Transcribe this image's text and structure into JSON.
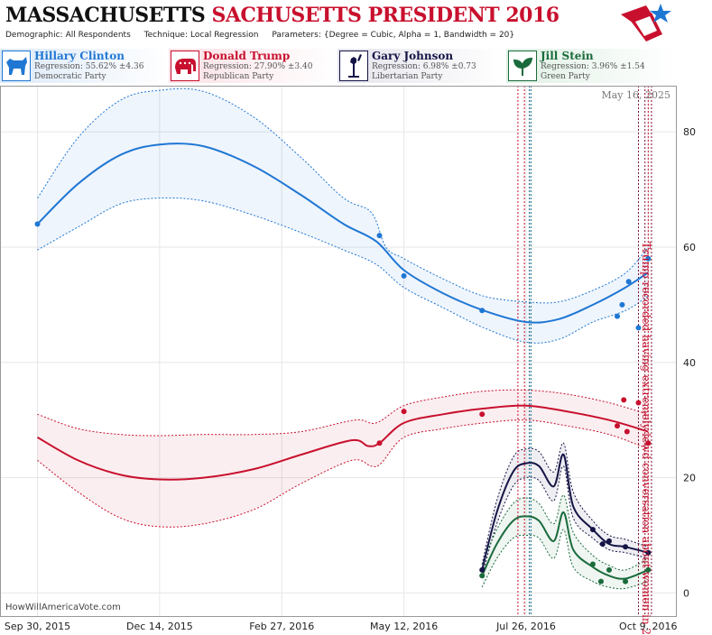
{
  "header": {
    "title_state": "MASSACHUSETTS",
    "title_state_repeat": "SACHUSETTS",
    "title_race": "PRESIDENT 2016",
    "demographic_label": "Demographic:",
    "demographic_value": "All Respondents",
    "technique_label": "Technique:",
    "technique_value": "Local Regression",
    "parameters_label": "Parameters:",
    "parameters_value": "{Degree = Cubic, Alpha = 1, Bandwidth = 20}"
  },
  "candidates": [
    {
      "name": "Hillary Clinton",
      "regression": "Regression: 55.62% ±4.36",
      "party": "Democratic Party",
      "color": "#1f77d4",
      "icon": "donkey-icon"
    },
    {
      "name": "Donald Trump",
      "regression": "Regression: 27.90% ±3.40",
      "party": "Republican Party",
      "color": "#c8102e",
      "icon": "elephant-icon"
    },
    {
      "name": "Gary Johnson",
      "regression": "Regression: 6.98% ±0.73",
      "party": "Libertarian Party",
      "color": "#141446",
      "icon": "liberty-icon"
    },
    {
      "name": "Jill Stein",
      "regression": "Regression: 3.96% ±1.54",
      "party": "Green Party",
      "color": "#1a6b3c",
      "icon": "leaf-icon"
    }
  ],
  "date_stamp": "May 16, 2025",
  "watermark": "HowWillAmericaVote.com",
  "annotation": "Trump recorded having extremely lewd conversation about women in 2005",
  "chart_data": {
    "type": "line",
    "x_ticks": [
      "Sep 30, 2015",
      "Dec 14, 2015",
      "Feb 27, 2016",
      "May 12, 2016",
      "Jul 26, 2016",
      "Oct 9, 2016"
    ],
    "y_ticks": [
      0,
      20,
      40,
      60,
      80
    ],
    "ylim": [
      -4,
      88
    ],
    "xlim": [
      "2015-09-07",
      "2016-10-26"
    ],
    "grid": true,
    "event_lines": [
      "2016-07-21",
      "2016-07-28",
      "2016-07-25",
      "2016-07-29",
      "2016-10-03",
      "2016-10-07",
      "2016-10-09",
      "2016-10-11"
    ],
    "series": [
      {
        "name": "Hillary Clinton",
        "color": "#1f77d4",
        "line": [
          [
            "2015-09-30",
            64
          ],
          [
            "2015-10-25",
            71
          ],
          [
            "2015-11-20",
            76
          ],
          [
            "2015-12-14",
            77.8
          ],
          [
            "2016-01-10",
            77.5
          ],
          [
            "2016-02-10",
            74
          ],
          [
            "2016-03-10",
            69
          ],
          [
            "2016-04-05",
            64
          ],
          [
            "2016-04-25",
            61
          ],
          [
            "2016-05-12",
            56
          ],
          [
            "2016-06-05",
            52
          ],
          [
            "2016-06-30",
            49
          ],
          [
            "2016-07-26",
            47
          ],
          [
            "2016-08-15",
            47.5
          ],
          [
            "2016-09-05",
            50
          ],
          [
            "2016-09-25",
            53
          ],
          [
            "2016-10-09",
            55.6
          ]
        ],
        "upper": [
          [
            "2015-09-30",
            68.5
          ],
          [
            "2015-10-25",
            79
          ],
          [
            "2015-11-20",
            85.5
          ],
          [
            "2015-12-14",
            87.2
          ],
          [
            "2016-01-10",
            87
          ],
          [
            "2016-02-10",
            82.5
          ],
          [
            "2016-03-10",
            75.5
          ],
          [
            "2016-04-05",
            68.5
          ],
          [
            "2016-04-22",
            66
          ],
          [
            "2016-05-01",
            60
          ],
          [
            "2016-05-12",
            58
          ],
          [
            "2016-06-05",
            54.5
          ],
          [
            "2016-06-30",
            51.5
          ],
          [
            "2016-07-26",
            50.5
          ],
          [
            "2016-08-15",
            50.5
          ],
          [
            "2016-09-05",
            52.5
          ],
          [
            "2016-09-25",
            55.5
          ],
          [
            "2016-10-09",
            60
          ]
        ],
        "lower": [
          [
            "2015-09-30",
            59.5
          ],
          [
            "2015-10-25",
            63.5
          ],
          [
            "2015-11-20",
            67.5
          ],
          [
            "2015-12-14",
            68.5
          ],
          [
            "2016-01-10",
            68
          ],
          [
            "2016-02-10",
            65.5
          ],
          [
            "2016-03-10",
            62.5
          ],
          [
            "2016-04-05",
            59.5
          ],
          [
            "2016-04-25",
            57
          ],
          [
            "2016-05-12",
            53
          ],
          [
            "2016-06-05",
            49.5
          ],
          [
            "2016-06-30",
            46
          ],
          [
            "2016-07-26",
            43.5
          ],
          [
            "2016-08-15",
            44
          ],
          [
            "2016-09-05",
            47
          ],
          [
            "2016-09-25",
            49
          ],
          [
            "2016-10-09",
            51.5
          ]
        ],
        "points": [
          [
            "2015-09-30",
            64
          ],
          [
            "2016-04-27",
            62
          ],
          [
            "2016-05-12",
            55
          ],
          [
            "2016-06-29",
            49
          ],
          [
            "2016-09-20",
            48
          ],
          [
            "2016-09-23",
            50
          ],
          [
            "2016-09-27",
            54
          ],
          [
            "2016-10-03",
            46
          ],
          [
            "2016-10-09",
            58
          ]
        ]
      },
      {
        "name": "Donald Trump",
        "color": "#c8102e",
        "line": [
          [
            "2015-09-30",
            27
          ],
          [
            "2015-10-25",
            23
          ],
          [
            "2015-11-20",
            20.5
          ],
          [
            "2015-12-14",
            19.7
          ],
          [
            "2016-01-10",
            20
          ],
          [
            "2016-02-10",
            21.5
          ],
          [
            "2016-03-10",
            24
          ],
          [
            "2016-04-10",
            26.5
          ],
          [
            "2016-04-20",
            25.5
          ],
          [
            "2016-04-27",
            26
          ],
          [
            "2016-05-12",
            29.5
          ],
          [
            "2016-06-05",
            31
          ],
          [
            "2016-06-30",
            32
          ],
          [
            "2016-07-26",
            32.5
          ],
          [
            "2016-08-20",
            31.5
          ],
          [
            "2016-09-15",
            30
          ],
          [
            "2016-10-09",
            28
          ]
        ],
        "upper": [
          [
            "2015-09-30",
            31
          ],
          [
            "2015-10-25",
            28.5
          ],
          [
            "2015-11-20",
            27.5
          ],
          [
            "2015-12-14",
            27.3
          ],
          [
            "2016-01-10",
            27.5
          ],
          [
            "2016-02-10",
            27.5
          ],
          [
            "2016-03-10",
            28
          ],
          [
            "2016-04-12",
            30
          ],
          [
            "2016-04-25",
            29.5
          ],
          [
            "2016-05-12",
            32.5
          ],
          [
            "2016-06-05",
            34
          ],
          [
            "2016-06-30",
            35
          ],
          [
            "2016-07-26",
            35.2
          ],
          [
            "2016-08-20",
            34.5
          ],
          [
            "2016-09-15",
            33
          ],
          [
            "2016-10-09",
            31
          ]
        ],
        "lower": [
          [
            "2015-09-30",
            23
          ],
          [
            "2015-10-25",
            17.5
          ],
          [
            "2015-11-20",
            13
          ],
          [
            "2015-12-14",
            11.5
          ],
          [
            "2016-01-10",
            12
          ],
          [
            "2016-02-10",
            14.5
          ],
          [
            "2016-03-10",
            19
          ],
          [
            "2016-04-10",
            23
          ],
          [
            "2016-04-22",
            22
          ],
          [
            "2016-04-28",
            22.5
          ],
          [
            "2016-05-12",
            27
          ],
          [
            "2016-06-05",
            28.5
          ],
          [
            "2016-06-30",
            29.5
          ],
          [
            "2016-07-26",
            30
          ],
          [
            "2016-08-20",
            29
          ],
          [
            "2016-09-15",
            27.5
          ],
          [
            "2016-10-09",
            25
          ]
        ],
        "points": [
          [
            "2016-04-27",
            26
          ],
          [
            "2016-05-12",
            31.5
          ],
          [
            "2016-06-29",
            31
          ],
          [
            "2016-09-20",
            29
          ],
          [
            "2016-09-24",
            33.5
          ],
          [
            "2016-09-26",
            28
          ],
          [
            "2016-10-03",
            33
          ],
          [
            "2016-10-09",
            26
          ]
        ]
      },
      {
        "name": "Gary Johnson",
        "color": "#141446",
        "line": [
          [
            "2016-06-29",
            4
          ],
          [
            "2016-07-08",
            14
          ],
          [
            "2016-07-18",
            21
          ],
          [
            "2016-07-26",
            22.5
          ],
          [
            "2016-08-03",
            22
          ],
          [
            "2016-08-12",
            18.5
          ],
          [
            "2016-08-18",
            24
          ],
          [
            "2016-08-24",
            15
          ],
          [
            "2016-09-05",
            11
          ],
          [
            "2016-09-15",
            8.5
          ],
          [
            "2016-09-25",
            8
          ],
          [
            "2016-10-09",
            7
          ]
        ],
        "upper": [
          [
            "2016-06-29",
            5
          ],
          [
            "2016-07-08",
            16
          ],
          [
            "2016-07-18",
            23.5
          ],
          [
            "2016-07-26",
            25
          ],
          [
            "2016-08-03",
            24.5
          ],
          [
            "2016-08-12",
            21
          ],
          [
            "2016-08-18",
            26
          ],
          [
            "2016-08-24",
            17.5
          ],
          [
            "2016-09-05",
            12.5
          ],
          [
            "2016-09-15",
            10
          ],
          [
            "2016-09-25",
            9.3
          ],
          [
            "2016-10-09",
            8
          ]
        ],
        "lower": [
          [
            "2016-06-29",
            3
          ],
          [
            "2016-07-08",
            12
          ],
          [
            "2016-07-18",
            18.5
          ],
          [
            "2016-07-26",
            20
          ],
          [
            "2016-08-03",
            19.5
          ],
          [
            "2016-08-12",
            16
          ],
          [
            "2016-08-18",
            22
          ],
          [
            "2016-08-24",
            13
          ],
          [
            "2016-09-05",
            9.5
          ],
          [
            "2016-09-15",
            7.5
          ],
          [
            "2016-09-25",
            7
          ],
          [
            "2016-10-09",
            6
          ]
        ],
        "points": [
          [
            "2016-06-29",
            4
          ],
          [
            "2016-09-05",
            11
          ],
          [
            "2016-09-11",
            8.5
          ],
          [
            "2016-09-15",
            9
          ],
          [
            "2016-09-25",
            8
          ],
          [
            "2016-10-09",
            7
          ]
        ]
      },
      {
        "name": "Jill Stein",
        "color": "#1a6b3c",
        "line": [
          [
            "2016-06-29",
            3
          ],
          [
            "2016-07-08",
            8.5
          ],
          [
            "2016-07-18",
            12.5
          ],
          [
            "2016-07-26",
            13.3
          ],
          [
            "2016-08-03",
            12.5
          ],
          [
            "2016-08-12",
            9
          ],
          [
            "2016-08-18",
            14
          ],
          [
            "2016-08-24",
            7.5
          ],
          [
            "2016-09-05",
            4.5
          ],
          [
            "2016-09-15",
            3
          ],
          [
            "2016-09-25",
            2.5
          ],
          [
            "2016-10-09",
            4
          ]
        ],
        "upper": [
          [
            "2016-06-29",
            5
          ],
          [
            "2016-07-08",
            11
          ],
          [
            "2016-07-18",
            15.5
          ],
          [
            "2016-07-26",
            16.5
          ],
          [
            "2016-08-03",
            15.5
          ],
          [
            "2016-08-12",
            12
          ],
          [
            "2016-08-18",
            17
          ],
          [
            "2016-08-24",
            10.5
          ],
          [
            "2016-09-05",
            6.5
          ],
          [
            "2016-09-15",
            4.8
          ],
          [
            "2016-09-25",
            4
          ],
          [
            "2016-10-09",
            6
          ]
        ],
        "lower": [
          [
            "2016-06-29",
            1
          ],
          [
            "2016-07-08",
            6
          ],
          [
            "2016-07-18",
            9.5
          ],
          [
            "2016-07-26",
            10
          ],
          [
            "2016-08-03",
            9.5
          ],
          [
            "2016-08-12",
            6
          ],
          [
            "2016-08-18",
            11
          ],
          [
            "2016-08-24",
            4.5
          ],
          [
            "2016-09-05",
            2
          ],
          [
            "2016-09-15",
            1
          ],
          [
            "2016-09-25",
            0.8
          ],
          [
            "2016-10-09",
            2
          ]
        ],
        "points": [
          [
            "2016-06-29",
            3
          ],
          [
            "2016-09-05",
            5
          ],
          [
            "2016-09-10",
            2
          ],
          [
            "2016-09-15",
            4
          ],
          [
            "2016-09-25",
            2
          ],
          [
            "2016-10-09",
            4
          ]
        ]
      }
    ]
  }
}
